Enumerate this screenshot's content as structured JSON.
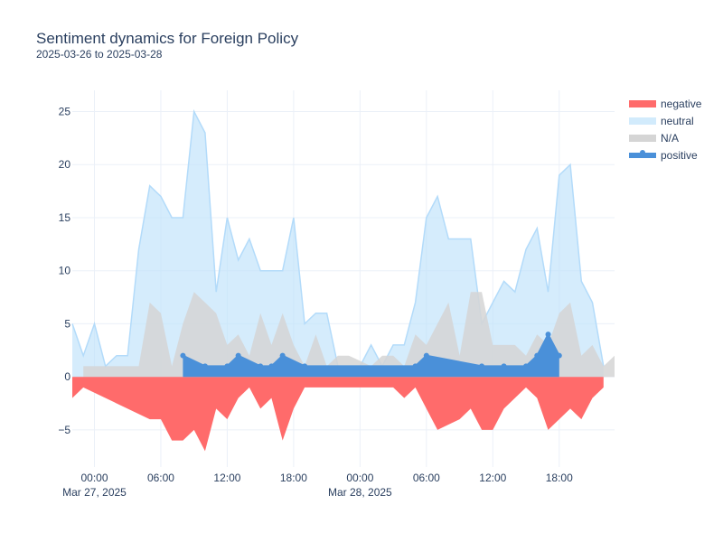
{
  "chart_data": {
    "type": "area",
    "title": "Sentiment dynamics for Foreign Policy",
    "subtitle": "2025-03-26 to 2025-03-28",
    "xlabel": "",
    "ylabel": "",
    "ylim": [
      -8.5,
      27
    ],
    "xlim": [
      "2025-03-26 22:00",
      "2025-03-28 23:00"
    ],
    "grid": true,
    "legend_position": "top-right",
    "x_ticks": [
      {
        "t": "2025-03-27 00:00",
        "label": "00:00",
        "sublabel": "Mar 27, 2025"
      },
      {
        "t": "2025-03-27 06:00",
        "label": "06:00",
        "sublabel": ""
      },
      {
        "t": "2025-03-27 12:00",
        "label": "12:00",
        "sublabel": ""
      },
      {
        "t": "2025-03-27 18:00",
        "label": "18:00",
        "sublabel": ""
      },
      {
        "t": "2025-03-28 00:00",
        "label": "00:00",
        "sublabel": "Mar 28, 2025"
      },
      {
        "t": "2025-03-28 06:00",
        "label": "06:00",
        "sublabel": ""
      },
      {
        "t": "2025-03-28 12:00",
        "label": "12:00",
        "sublabel": ""
      },
      {
        "t": "2025-03-28 18:00",
        "label": "18:00",
        "sublabel": ""
      }
    ],
    "y_ticks": [
      -5,
      0,
      5,
      10,
      15,
      20,
      25
    ],
    "series": [
      {
        "name": "negative",
        "color": "#ff6b6b",
        "points": [
          [
            "2025-03-26 22:00",
            -2
          ],
          [
            "2025-03-26 23:00",
            -1
          ],
          [
            "2025-03-27 05:00",
            -4
          ],
          [
            "2025-03-27 06:00",
            -4
          ],
          [
            "2025-03-27 07:00",
            -6
          ],
          [
            "2025-03-27 08:00",
            -6
          ],
          [
            "2025-03-27 09:00",
            -5
          ],
          [
            "2025-03-27 10:00",
            -7
          ],
          [
            "2025-03-27 11:00",
            -3
          ],
          [
            "2025-03-27 12:00",
            -4
          ],
          [
            "2025-03-27 13:00",
            -2
          ],
          [
            "2025-03-27 14:00",
            -1
          ],
          [
            "2025-03-27 15:00",
            -3
          ],
          [
            "2025-03-27 16:00",
            -2
          ],
          [
            "2025-03-27 17:00",
            -6
          ],
          [
            "2025-03-27 18:00",
            -3
          ],
          [
            "2025-03-27 19:00",
            -1
          ],
          [
            "2025-03-28 03:00",
            -1
          ],
          [
            "2025-03-28 04:00",
            -2
          ],
          [
            "2025-03-28 05:00",
            -1
          ],
          [
            "2025-03-28 06:00",
            -3
          ],
          [
            "2025-03-28 07:00",
            -5
          ],
          [
            "2025-03-28 08:00",
            -4.5
          ],
          [
            "2025-03-28 09:00",
            -4
          ],
          [
            "2025-03-28 10:00",
            -3
          ],
          [
            "2025-03-28 11:00",
            -5
          ],
          [
            "2025-03-28 12:00",
            -5
          ],
          [
            "2025-03-28 13:00",
            -3
          ],
          [
            "2025-03-28 14:00",
            -2
          ],
          [
            "2025-03-28 15:00",
            -1
          ],
          [
            "2025-03-28 16:00",
            -2
          ],
          [
            "2025-03-28 17:00",
            -5
          ],
          [
            "2025-03-28 18:00",
            -4
          ],
          [
            "2025-03-28 19:00",
            -3
          ],
          [
            "2025-03-28 20:00",
            -4
          ],
          [
            "2025-03-28 21:00",
            -2
          ],
          [
            "2025-03-28 22:00",
            -1
          ]
        ]
      },
      {
        "name": "neutral",
        "color": "#bfe2fb",
        "points": [
          [
            "2025-03-26 22:00",
            5
          ],
          [
            "2025-03-26 23:00",
            2
          ],
          [
            "2025-03-27 00:00",
            5
          ],
          [
            "2025-03-27 01:00",
            1
          ],
          [
            "2025-03-27 02:00",
            2
          ],
          [
            "2025-03-27 03:00",
            2
          ],
          [
            "2025-03-27 04:00",
            12
          ],
          [
            "2025-03-27 05:00",
            18
          ],
          [
            "2025-03-27 06:00",
            17
          ],
          [
            "2025-03-27 07:00",
            15
          ],
          [
            "2025-03-27 08:00",
            15
          ],
          [
            "2025-03-27 09:00",
            25
          ],
          [
            "2025-03-27 10:00",
            23
          ],
          [
            "2025-03-27 11:00",
            8
          ],
          [
            "2025-03-27 12:00",
            15
          ],
          [
            "2025-03-27 13:00",
            11
          ],
          [
            "2025-03-27 14:00",
            13
          ],
          [
            "2025-03-27 15:00",
            10
          ],
          [
            "2025-03-27 16:00",
            10
          ],
          [
            "2025-03-27 17:00",
            10
          ],
          [
            "2025-03-27 18:00",
            15
          ],
          [
            "2025-03-27 19:00",
            5
          ],
          [
            "2025-03-27 20:00",
            6
          ],
          [
            "2025-03-27 21:00",
            6
          ],
          [
            "2025-03-27 22:00",
            1
          ],
          [
            "2025-03-28 00:00",
            1
          ],
          [
            "2025-03-28 01:00",
            3
          ],
          [
            "2025-03-28 02:00",
            1
          ],
          [
            "2025-03-28 03:00",
            3
          ],
          [
            "2025-03-28 04:00",
            3
          ],
          [
            "2025-03-28 05:00",
            7
          ],
          [
            "2025-03-28 06:00",
            15
          ],
          [
            "2025-03-28 07:00",
            17
          ],
          [
            "2025-03-28 08:00",
            13
          ],
          [
            "2025-03-28 09:00",
            13
          ],
          [
            "2025-03-28 10:00",
            13
          ],
          [
            "2025-03-28 11:00",
            5
          ],
          [
            "2025-03-28 12:00",
            7
          ],
          [
            "2025-03-28 13:00",
            9
          ],
          [
            "2025-03-28 14:00",
            8
          ],
          [
            "2025-03-28 15:00",
            12
          ],
          [
            "2025-03-28 16:00",
            14
          ],
          [
            "2025-03-28 17:00",
            8
          ],
          [
            "2025-03-28 18:00",
            19
          ],
          [
            "2025-03-28 19:00",
            20
          ],
          [
            "2025-03-28 20:00",
            9
          ],
          [
            "2025-03-28 21:00",
            7
          ],
          [
            "2025-03-28 22:00",
            1
          ]
        ]
      },
      {
        "name": "N/A",
        "color": "#d5d5d5",
        "points": [
          [
            "2025-03-26 23:00",
            1
          ],
          [
            "2025-03-27 04:00",
            1
          ],
          [
            "2025-03-27 05:00",
            7
          ],
          [
            "2025-03-27 06:00",
            6
          ],
          [
            "2025-03-27 07:00",
            1
          ],
          [
            "2025-03-27 08:00",
            5
          ],
          [
            "2025-03-27 09:00",
            8
          ],
          [
            "2025-03-27 10:00",
            7
          ],
          [
            "2025-03-27 11:00",
            6
          ],
          [
            "2025-03-27 12:00",
            3
          ],
          [
            "2025-03-27 13:00",
            4
          ],
          [
            "2025-03-27 14:00",
            2
          ],
          [
            "2025-03-27 15:00",
            6
          ],
          [
            "2025-03-27 16:00",
            3
          ],
          [
            "2025-03-27 17:00",
            6
          ],
          [
            "2025-03-27 18:00",
            3
          ],
          [
            "2025-03-27 19:00",
            1
          ],
          [
            "2025-03-27 20:00",
            4
          ],
          [
            "2025-03-27 21:00",
            1
          ],
          [
            "2025-03-27 22:00",
            2
          ],
          [
            "2025-03-27 23:00",
            2
          ],
          [
            "2025-03-28 00:00",
            1.5
          ],
          [
            "2025-03-28 01:00",
            1
          ],
          [
            "2025-03-28 02:00",
            2
          ],
          [
            "2025-03-28 03:00",
            2
          ],
          [
            "2025-03-28 04:00",
            1
          ],
          [
            "2025-03-28 05:00",
            4
          ],
          [
            "2025-03-28 06:00",
            3
          ],
          [
            "2025-03-28 07:00",
            5
          ],
          [
            "2025-03-28 08:00",
            7
          ],
          [
            "2025-03-28 09:00",
            2
          ],
          [
            "2025-03-28 10:00",
            8
          ],
          [
            "2025-03-28 11:00",
            8
          ],
          [
            "2025-03-28 12:00",
            3
          ],
          [
            "2025-03-28 13:00",
            3
          ],
          [
            "2025-03-28 14:00",
            3
          ],
          [
            "2025-03-28 15:00",
            2
          ],
          [
            "2025-03-28 16:00",
            4
          ],
          [
            "2025-03-28 17:00",
            3
          ],
          [
            "2025-03-28 18:00",
            6
          ],
          [
            "2025-03-28 19:00",
            7
          ],
          [
            "2025-03-28 20:00",
            2
          ],
          [
            "2025-03-28 21:00",
            3
          ],
          [
            "2025-03-28 22:00",
            1
          ],
          [
            "2025-03-28 23:00",
            2
          ]
        ]
      },
      {
        "name": "positive",
        "color": "#4a90d9",
        "points": [
          [
            "2025-03-27 08:00",
            2
          ],
          [
            "2025-03-27 10:00",
            1
          ],
          [
            "2025-03-27 12:00",
            1
          ],
          [
            "2025-03-27 13:00",
            2
          ],
          [
            "2025-03-27 15:00",
            1
          ],
          [
            "2025-03-27 16:00",
            1
          ],
          [
            "2025-03-27 17:00",
            2
          ],
          [
            "2025-03-27 19:00",
            1
          ],
          [
            "2025-03-28 05:00",
            1
          ],
          [
            "2025-03-28 06:00",
            2
          ],
          [
            "2025-03-28 11:00",
            1
          ],
          [
            "2025-03-28 13:00",
            1
          ],
          [
            "2025-03-28 15:00",
            1
          ],
          [
            "2025-03-28 16:00",
            2
          ],
          [
            "2025-03-28 17:00",
            4
          ],
          [
            "2025-03-28 18:00",
            2
          ]
        ]
      }
    ]
  }
}
